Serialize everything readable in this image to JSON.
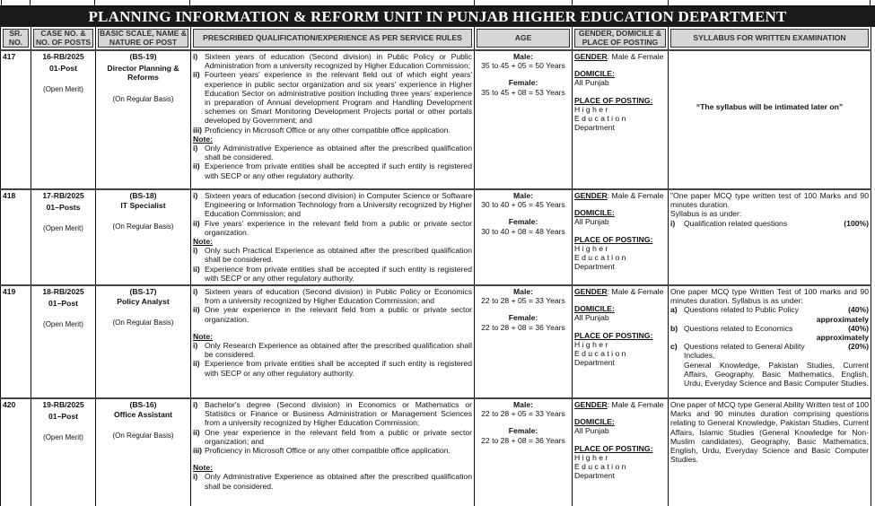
{
  "title": "PLANNING INFORMATION & REFORM UNIT IN PUNJAB HIGHER EDUCATION DEPARTMENT",
  "headers": {
    "sr": "SR. NO.",
    "case": "CASE NO. & NO. OF POSTS",
    "scale": "BASIC SCALE, NAME & NATURE OF POST",
    "qualification": "PRESCRIBED QUALIFICATION/EXPERIENCE AS PER SERVICE RULES",
    "age": "AGE",
    "gender": "GENDER, DOMICILE & PLACE OF POSTING",
    "syllabus": "SYLLABUS FOR WRITTEN EXAMINATION"
  },
  "rows": [
    {
      "sr": "417",
      "case_no": "16-RB/2025",
      "posts": "01-Post",
      "merit": "(Open Merit)",
      "scale": "(BS-19)",
      "post_name": "Director Planning & Reforms",
      "basis": "(On Regular Basis)",
      "qualifications": [
        {
          "marker": "i)",
          "text": "Sixteen years of education (Second division) in Public Policy or Public Administration from a university recognized by Higher Education Commission;"
        },
        {
          "marker": "ii)",
          "text": "Fourteen years' experience in the relevant field out of which eight years' experience in public sector organization and six years' experience in Higher Education Sector on administrative position including three years' experience in preparation of Annual development Program and Handling Development schemes on Smart Monitoring Development Projects portal or other portals developed by Government; and"
        },
        {
          "marker": "iii)",
          "text": "Proficiency in Microsoft Office or any other compatible office application."
        }
      ],
      "note_label": "Note:",
      "notes": [
        {
          "marker": "i)",
          "text": "Only Administrative Experience as obtained after the prescribed qualification shall be considered."
        },
        {
          "marker": "ii)",
          "text": "Experience from private entities shall be accepted if such entity is registered with SECP or any other regulatory authority."
        }
      ],
      "age": {
        "male_label": "Male:",
        "male": "35 to 45 + 05 = 50 Years",
        "female_label": "Female:",
        "female": "35 to 45 + 08 = 53 Years"
      },
      "gender": {
        "gender_label": "GENDER",
        "gender": ": Male & Female",
        "domicile_label": "DOMICILE:",
        "domicile": "All Punjab",
        "posting_label": "PLACE OF POSTING:",
        "posting_1": "Higher Education",
        "posting_2": "Department"
      },
      "syllabus": {
        "intro": "“The syllabus will be intimated later on”",
        "items": []
      }
    },
    {
      "sr": "418",
      "case_no": "17-RB/2025",
      "posts": "01–Posts",
      "merit": "(Open Merit)",
      "scale": "(BS-18)",
      "post_name": "IT Specialist",
      "basis": "(On Regular Basis)",
      "qualifications": [
        {
          "marker": "i)",
          "text": "Sixteen years of education (second division) in Computer Science or Software Engineering or Information Technology from a University recognized by Higher Education Commission; and"
        },
        {
          "marker": "ii)",
          "text": "Five years' experience in the relevant field from a public or private sector organization."
        }
      ],
      "note_label": "Note:",
      "notes": [
        {
          "marker": "i)",
          "text": "Only such Practical Experience as obtained after the prescribed qualification shall be considered."
        },
        {
          "marker": "ii)",
          "text": "Experience from private entities shall be accepted if such entity is registered with SECP or any other regulatory authority."
        }
      ],
      "age": {
        "male_label": "Male:",
        "male": "30 to 40 + 05 = 45 Years",
        "female_label": "Female:",
        "female": "30 to 40 + 08 = 48 Years"
      },
      "gender": {
        "gender_label": "GENDER",
        "gender": ": Male & Female",
        "domicile_label": "DOMICILE:",
        "domicile": "All Punjab",
        "posting_label": "PLACE OF POSTING:",
        "posting_1": "Higher Education",
        "posting_2": "Department"
      },
      "syllabus": {
        "intro": "\"One paper MCQ type written test of 100 Marks and 90 minutes duration.",
        "intro_2": "Syllabus is as under:",
        "items": [
          {
            "marker": "i)",
            "text": "Qualification related questions",
            "pct": "(100%)"
          }
        ]
      }
    },
    {
      "sr": "419",
      "case_no": "18-RB/2025",
      "posts": "01–Post",
      "merit": "(Open Merit)",
      "scale": "(BS-17)",
      "post_name": "Policy Analyst",
      "basis": "(On Regular Basis)",
      "qualifications": [
        {
          "marker": "i)",
          "text": "Sixteen years of education (Second division) in Public Policy or Economics from a university recognized by Higher Education Commission; and"
        },
        {
          "marker": "ii)",
          "text": "One year experience in the relevant field from a public or private sector organization."
        }
      ],
      "note_label": "Note:",
      "notes": [
        {
          "marker": "i)",
          "text": "Only Research Experience as obtained after the prescribed qualification shall be considered."
        },
        {
          "marker": "ii)",
          "text": "Experience from private entities shall be accepted if such entity is registered with SECP or any other regulatory authority."
        }
      ],
      "age": {
        "male_label": "Male:",
        "male": "22 to 28 + 05 = 33 Years",
        "female_label": "Female:",
        "female": "22 to 28 + 08 = 36 Years"
      },
      "gender": {
        "gender_label": "GENDER",
        "gender": ": Male & Female",
        "domicile_label": "DOMICILE:",
        "domicile": "All Punjab",
        "posting_label": "PLACE OF POSTING:",
        "posting_1": "Higher Education",
        "posting_2": "Department"
      },
      "syllabus": {
        "intro": "One paper MCQ type Written Test of 100 marks and 90 minutes duration. Syllabus is as under:",
        "items": [
          {
            "marker": "a)",
            "text": "Questions related to Public Policy",
            "pct": "(40%)",
            "after": "approximately"
          },
          {
            "marker": "b)",
            "text": "Questions related to Economics",
            "pct": "(40%)",
            "after": "approximately"
          },
          {
            "marker": "c)",
            "text": "Questions related to General Ability",
            "pct": "(20%)",
            "sub": "Includes,",
            "sub_2": "General Knowledge, Pakistan Studies, Current Affairs, Geography, Basic Mathematics, English, Urdu, Everyday Science and Basic Computer Studies."
          }
        ]
      }
    },
    {
      "sr": "420",
      "case_no": "19-RB/2025",
      "posts": "01–Post",
      "merit": "(Open Merit)",
      "scale": "(BS-16)",
      "post_name": "Office Assistant",
      "basis": "(On Regular Basis)",
      "qualifications": [
        {
          "marker": "i)",
          "text": "Bachelor's degree (Second division) in Economics or Mathematics or Statistics or Finance or Business Administration or Management Sciences from a university recognized by Higher Education Commission;"
        },
        {
          "marker": "ii)",
          "text": "One year experience in the relevant field from a public or private sector organization; and"
        },
        {
          "marker": "iii)",
          "text": "Proficiency in Microsoft Office or any other compatible office application."
        }
      ],
      "note_label": "Note:",
      "notes": [
        {
          "marker": "i)",
          "text": "Only Administrative Experience as obtained after the prescribed qualification shall be considered."
        }
      ],
      "age": {
        "male_label": "Male:",
        "male": "22 to 28 + 05 = 33 Years",
        "female_label": "Female:",
        "female": "22 to 28 + 08 = 36 Years"
      },
      "gender": {
        "gender_label": "GENDER",
        "gender": ": Male & Female",
        "domicile_label": "DOMICILE:",
        "domicile": "All Punjab",
        "posting_label": "PLACE OF POSTING:",
        "posting_1": "Higher Education",
        "posting_2": "Department"
      },
      "syllabus": {
        "intro": "One paper of MCQ type General Ability Written test of 100 Marks and 90 minutes duration comprising questions relating to General Knowledge, Pakistan Studies, Current Affairs, Islamic Studies (General Knowledge for Non-Muslim candidates), Geography, Basic Mathematics, English, Urdu, Everyday Science and Basic Computer Studies.",
        "items": []
      }
    }
  ]
}
